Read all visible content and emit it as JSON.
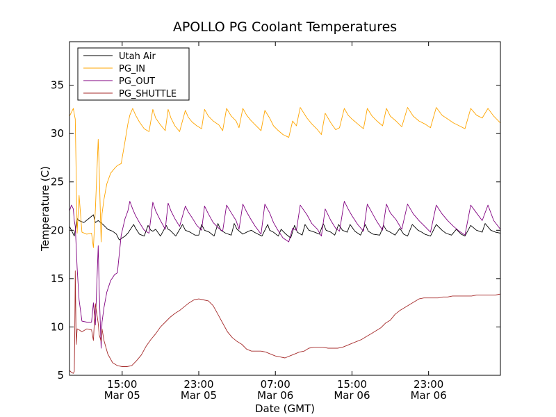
{
  "chart_data": {
    "type": "line",
    "title": "APOLLO PG Coolant Temperatures",
    "xlabel": "Date (GMT)",
    "ylabel": "Temperature (C)",
    "xlim": [
      9.5,
      54.5
    ],
    "ylim": [
      5,
      39.5
    ],
    "yticks": [
      5,
      10,
      15,
      20,
      25,
      30,
      35
    ],
    "xticks": [
      {
        "x": 15,
        "time": "15:00",
        "date": "Mar 05"
      },
      {
        "x": 23,
        "time": "23:00",
        "date": "Mar 05"
      },
      {
        "x": 31,
        "time": "07:00",
        "date": "Mar 06"
      },
      {
        "x": 39,
        "time": "15:00",
        "date": "Mar 06"
      },
      {
        "x": 47,
        "time": "23:00",
        "date": "Mar 06"
      }
    ],
    "x_units": "hours since 00:00 Mar 05 (GMT)",
    "legend": {
      "placement": "top-left"
    },
    "series": [
      {
        "name": "Utah Air",
        "color": "#000000",
        "x": [
          9.5,
          10.0,
          10.3,
          10.5,
          11.0,
          11.5,
          12.0,
          12.2,
          12.5,
          13.0,
          13.5,
          14.0,
          14.4,
          14.7,
          15.0,
          15.3,
          15.6,
          16.2,
          16.4,
          16.8,
          17.3,
          17.7,
          18.0,
          18.2,
          18.5,
          19.0,
          19.6,
          19.8,
          20.0,
          20.6,
          21.3,
          21.6,
          22.1,
          22.6,
          23.0,
          23.3,
          23.6,
          24.1,
          24.6,
          25.0,
          25.3,
          25.8,
          26.4,
          26.7,
          27.0,
          27.6,
          28.2,
          28.5,
          28.8,
          29.6,
          30.2,
          30.4,
          30.8,
          31.3,
          31.6,
          32.1,
          32.6,
          33.0,
          33.3,
          33.8,
          34.1,
          34.5,
          35.1,
          35.6,
          36.0,
          36.3,
          36.8,
          37.2,
          37.6,
          38.0,
          38.5,
          38.8,
          39.3,
          39.9,
          40.4,
          40.7,
          41.2,
          41.9,
          42.3,
          42.6,
          43.0,
          43.5,
          44.0,
          44.4,
          44.8,
          45.3,
          45.9,
          46.3,
          46.6,
          47.2,
          47.8,
          48.4,
          48.8,
          49.4,
          49.9,
          50.4,
          50.8,
          51.4,
          52.0,
          52.6,
          52.9,
          53.5,
          54.0,
          54.5
        ],
        "values": [
          20.4,
          19.4,
          21.2,
          21.0,
          20.8,
          21.2,
          21.6,
          20.8,
          21.0,
          20.6,
          20.1,
          19.9,
          19.6,
          19.0,
          19.2,
          19.4,
          19.7,
          20.6,
          20.2,
          19.6,
          19.4,
          20.5,
          20.0,
          19.9,
          20.1,
          19.4,
          20.5,
          20.1,
          20.0,
          19.4,
          20.6,
          20.0,
          19.8,
          19.5,
          19.5,
          20.6,
          20.0,
          19.8,
          19.4,
          20.7,
          20.0,
          19.7,
          19.5,
          20.7,
          20.1,
          19.6,
          19.9,
          20.0,
          19.8,
          19.4,
          20.6,
          20.0,
          19.8,
          19.4,
          20.1,
          19.6,
          19.2,
          20.5,
          19.8,
          19.5,
          20.6,
          20.0,
          19.8,
          19.6,
          20.7,
          20.0,
          19.8,
          19.5,
          20.6,
          20.0,
          19.8,
          20.6,
          19.9,
          19.5,
          20.6,
          19.9,
          19.6,
          19.5,
          20.5,
          20.0,
          19.8,
          19.5,
          20.2,
          19.6,
          19.4,
          20.6,
          20.0,
          19.8,
          19.6,
          19.4,
          20.6,
          20.0,
          19.7,
          19.5,
          20.1,
          19.6,
          19.4,
          20.5,
          20.0,
          19.8,
          20.7,
          20.0,
          19.8,
          19.7
        ]
      },
      {
        "name": "PG_IN",
        "color": "#ffa500",
        "x": [
          9.5,
          9.7,
          9.9,
          10.0,
          10.1,
          10.3,
          10.5,
          10.8,
          11.3,
          11.8,
          12.0,
          12.2,
          12.5,
          12.6,
          12.8,
          12.9,
          13.1,
          13.4,
          13.8,
          14.2,
          14.5,
          14.9,
          15.3,
          15.6,
          15.8,
          16.1,
          16.4,
          16.8,
          17.3,
          17.8,
          18.2,
          18.5,
          19.0,
          19.5,
          19.8,
          20.1,
          20.5,
          21.0,
          21.6,
          21.9,
          22.3,
          22.8,
          23.3,
          23.6,
          24.0,
          24.5,
          25.1,
          25.5,
          25.9,
          26.4,
          26.9,
          27.2,
          27.6,
          28.0,
          28.4,
          28.9,
          29.5,
          29.9,
          30.4,
          30.8,
          31.2,
          31.8,
          32.4,
          32.8,
          33.2,
          33.6,
          34.3,
          34.8,
          35.4,
          35.8,
          36.2,
          36.8,
          37.3,
          37.7,
          38.2,
          38.6,
          39.0,
          39.6,
          40.2,
          40.6,
          41.1,
          41.6,
          42.2,
          42.6,
          43.0,
          43.6,
          44.2,
          44.8,
          45.4,
          46.0,
          46.6,
          47.2,
          47.8,
          48.4,
          49.0,
          49.6,
          50.2,
          50.8,
          51.4,
          52.0,
          52.6,
          53.2,
          53.8,
          54.5
        ],
        "values": [
          31.8,
          32.2,
          32.6,
          32.0,
          31.5,
          19.7,
          23.6,
          19.8,
          19.6,
          19.7,
          18.2,
          22.1,
          29.4,
          26.4,
          18.8,
          21.7,
          23.2,
          24.8,
          25.9,
          26.4,
          26.7,
          26.9,
          29.2,
          31.0,
          31.9,
          32.6,
          31.9,
          31.2,
          30.5,
          30.2,
          32.5,
          31.6,
          30.9,
          30.3,
          32.5,
          31.6,
          30.8,
          30.2,
          32.4,
          31.7,
          31.2,
          30.8,
          30.5,
          32.5,
          31.8,
          31.3,
          30.9,
          30.3,
          32.6,
          31.8,
          31.3,
          30.6,
          32.6,
          31.9,
          31.4,
          30.9,
          30.3,
          32.4,
          31.6,
          30.8,
          30.4,
          29.9,
          29.6,
          31.3,
          30.8,
          32.7,
          31.6,
          31.0,
          30.4,
          29.9,
          32.1,
          31.1,
          30.4,
          30.6,
          32.6,
          31.9,
          31.5,
          31.0,
          30.5,
          32.6,
          31.8,
          31.3,
          30.8,
          32.6,
          31.8,
          31.3,
          30.7,
          32.7,
          31.8,
          31.3,
          31.0,
          30.6,
          32.7,
          31.9,
          31.5,
          31.1,
          30.8,
          30.5,
          32.6,
          31.9,
          31.6,
          32.6,
          31.8,
          31.1
        ]
      },
      {
        "name": "PG_OUT",
        "color": "#800080",
        "x": [
          9.5,
          9.7,
          9.9,
          10.0,
          10.1,
          10.3,
          10.5,
          10.8,
          11.3,
          11.8,
          12.0,
          12.2,
          12.5,
          12.6,
          12.8,
          12.9,
          13.1,
          13.4,
          13.8,
          14.2,
          14.5,
          14.9,
          15.3,
          15.6,
          15.8,
          16.1,
          16.4,
          16.8,
          17.3,
          17.8,
          18.2,
          18.5,
          19.0,
          19.5,
          19.8,
          20.1,
          20.5,
          21.0,
          21.6,
          21.9,
          22.3,
          22.8,
          23.3,
          23.6,
          24.0,
          24.5,
          25.1,
          25.5,
          25.9,
          26.4,
          26.9,
          27.2,
          27.6,
          28.0,
          28.4,
          28.9,
          29.5,
          29.9,
          30.4,
          30.8,
          31.2,
          31.8,
          32.4,
          32.8,
          33.2,
          33.6,
          34.3,
          34.8,
          35.4,
          35.8,
          36.2,
          36.8,
          37.3,
          37.7,
          38.2,
          38.6,
          39.0,
          39.6,
          40.2,
          40.6,
          41.1,
          41.6,
          42.2,
          42.6,
          43.0,
          43.6,
          44.2,
          44.8,
          45.4,
          46.0,
          46.6,
          47.2,
          47.8,
          48.4,
          49.0,
          49.6,
          50.2,
          50.8,
          51.4,
          52.0,
          52.6,
          53.2,
          53.8,
          54.5
        ],
        "values": [
          22.0,
          22.6,
          22.2,
          21.0,
          20.4,
          16.1,
          12.8,
          10.6,
          10.5,
          10.5,
          12.5,
          10.2,
          18.4,
          13.9,
          7.8,
          10.5,
          12.0,
          13.6,
          14.8,
          15.4,
          15.6,
          19.5,
          21.2,
          22.0,
          23.0,
          22.2,
          21.5,
          20.8,
          20.0,
          19.7,
          22.9,
          22.0,
          21.0,
          20.1,
          22.8,
          22.0,
          21.2,
          20.4,
          22.5,
          21.9,
          21.3,
          20.5,
          20.0,
          22.5,
          21.7,
          20.8,
          20.2,
          19.9,
          22.6,
          21.8,
          21.0,
          20.1,
          22.7,
          21.9,
          21.2,
          20.4,
          19.6,
          22.7,
          21.8,
          20.8,
          20.1,
          19.2,
          18.8,
          20.2,
          20.0,
          22.6,
          21.6,
          20.7,
          20.1,
          19.4,
          22.2,
          21.0,
          20.2,
          19.9,
          23.0,
          22.2,
          21.5,
          20.6,
          19.9,
          22.7,
          21.8,
          20.9,
          20.0,
          22.7,
          21.8,
          21.1,
          20.1,
          22.7,
          21.7,
          21.0,
          20.4,
          19.8,
          22.6,
          21.7,
          21.0,
          20.4,
          19.9,
          19.5,
          22.6,
          21.8,
          21.0,
          22.6,
          21.0,
          20.1
        ]
      },
      {
        "name": "PG_SHUTTLE",
        "color": "#a52a2a",
        "x": [
          9.5,
          9.7,
          9.9,
          10.0,
          10.05,
          10.1,
          10.2,
          10.3,
          10.5,
          10.8,
          11.3,
          11.8,
          12.0,
          12.2,
          12.5,
          12.6,
          12.8,
          12.9,
          13.1,
          13.5,
          14.0,
          14.5,
          15.0,
          15.5,
          16.0,
          16.5,
          17.0,
          17.5,
          18.0,
          18.5,
          19.0,
          19.5,
          20.0,
          20.5,
          21.0,
          21.5,
          22.0,
          22.5,
          23.0,
          23.5,
          24.0,
          24.5,
          25.0,
          25.5,
          26.0,
          26.5,
          27.0,
          27.5,
          28.0,
          28.5,
          29.0,
          29.5,
          30.0,
          30.5,
          31.0,
          31.5,
          32.0,
          32.5,
          33.0,
          33.5,
          34.0,
          34.5,
          35.0,
          35.5,
          36.0,
          36.5,
          37.0,
          37.5,
          38.0,
          38.5,
          39.0,
          39.5,
          40.0,
          40.5,
          41.0,
          41.5,
          42.0,
          42.5,
          43.0,
          43.5,
          44.0,
          44.5,
          45.0,
          45.5,
          46.0,
          46.5,
          47.0,
          47.5,
          48.0,
          48.5,
          49.0,
          49.5,
          50.0,
          50.5,
          51.0,
          51.5,
          52.0,
          52.5,
          53.0,
          53.5,
          54.0,
          54.5
        ],
        "values": [
          5.5,
          5.3,
          5.2,
          5.4,
          9.5,
          15.8,
          8.2,
          9.8,
          9.7,
          9.5,
          9.8,
          9.7,
          8.6,
          12.4,
          10.4,
          9.2,
          8.5,
          9.8,
          8.6,
          7.2,
          6.3,
          6.0,
          5.9,
          5.9,
          6.0,
          6.5,
          7.1,
          8.0,
          8.7,
          9.3,
          10.0,
          10.5,
          11.0,
          11.4,
          11.7,
          12.1,
          12.5,
          12.8,
          12.9,
          12.8,
          12.7,
          12.2,
          11.3,
          10.4,
          9.5,
          8.9,
          8.5,
          8.2,
          7.7,
          7.5,
          7.5,
          7.5,
          7.4,
          7.2,
          7.0,
          6.9,
          6.8,
          7.0,
          7.2,
          7.4,
          7.5,
          7.8,
          7.9,
          7.9,
          7.9,
          7.8,
          7.8,
          7.8,
          7.9,
          8.1,
          8.3,
          8.5,
          8.7,
          9.0,
          9.3,
          9.6,
          9.9,
          10.4,
          10.7,
          11.3,
          11.7,
          12.0,
          12.3,
          12.6,
          12.9,
          13.0,
          13.0,
          13.0,
          13.0,
          13.1,
          13.1,
          13.2,
          13.2,
          13.2,
          13.2,
          13.2,
          13.3,
          13.3,
          13.3,
          13.3,
          13.3,
          13.4
        ]
      }
    ]
  }
}
